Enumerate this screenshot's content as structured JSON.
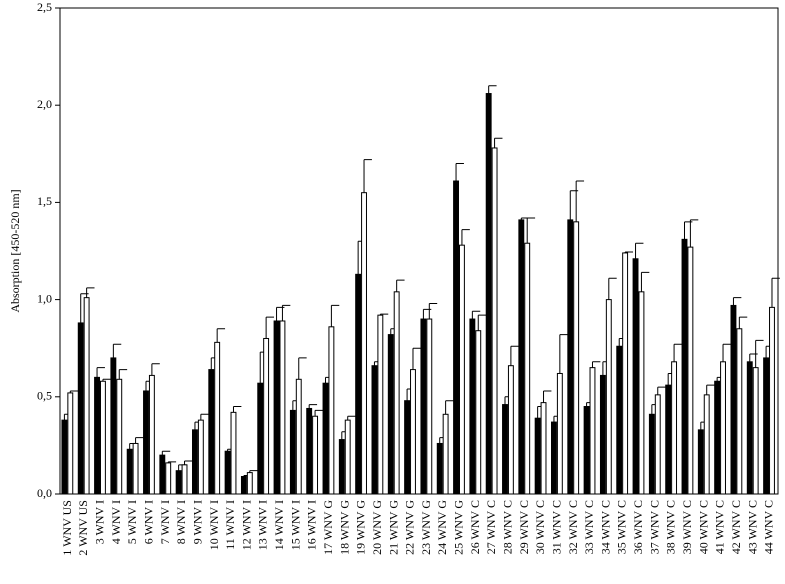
{
  "chart_data": {
    "type": "bar",
    "ylabel": "Absorption [450-520 nm]",
    "categories": [
      "1 WNV US",
      "2 WNV US",
      "3 WNV I",
      "4 WNV I",
      "5 WNV I",
      "6 WNV I",
      "7 WNV I",
      "8 WNV I",
      "9 WNV I",
      "10 WNV I",
      "11 WNV I",
      "12 WNV I",
      "13 WNV I",
      "14 WNV I",
      "15 WNV I",
      "16 WNV I",
      "17 WNV G",
      "18 WNV G",
      "19 WNV G",
      "20 WNV G",
      "21 WNV G",
      "22 WNV G",
      "23 WNV G",
      "24 WNV G",
      "25 WNV G",
      "26 WNV C",
      "27 WNV C",
      "28 WNV C",
      "29 WNV C",
      "30 WNV C",
      "31 WNV C",
      "32 WNV C",
      "33 WNV C",
      "34 WNV C",
      "35 WNV C",
      "36 WNV C",
      "37 WNV C",
      "38 WNV C",
      "39 WNV C",
      "40 WNV C",
      "41 WNV C",
      "42 WNV C",
      "43 WNV C",
      "44 WNV C"
    ],
    "series": [
      {
        "color": "#000000",
        "values": [
          0.38,
          0.88,
          0.6,
          0.7,
          0.23,
          0.53,
          0.2,
          0.12,
          0.33,
          0.64,
          0.22,
          0.09,
          0.57,
          0.89,
          0.43,
          0.44,
          0.57,
          0.28,
          1.13,
          0.66,
          0.82,
          0.48,
          0.9,
          0.26,
          1.61,
          0.9,
          2.06,
          0.46,
          1.41,
          0.39,
          0.37,
          1.41,
          0.45,
          0.61,
          0.76,
          1.21,
          0.41,
          0.56,
          1.31,
          0.33,
          0.58,
          0.97,
          0.68,
          0.7
        ],
        "errors": [
          0.03,
          0.15,
          0.05,
          0.07,
          0.03,
          0.05,
          0.02,
          0.03,
          0.04,
          0.06,
          0.01,
          0.005,
          0.16,
          0.07,
          0.05,
          0.02,
          0.03,
          0.04,
          0.17,
          0.02,
          0.03,
          0.06,
          0.05,
          0.03,
          0.09,
          0.04,
          0.04,
          0.04,
          0.01,
          0.06,
          0.03,
          0.15,
          0.02,
          0.07,
          0.04,
          0.08,
          0.05,
          0.06,
          0.09,
          0.04,
          0.02,
          0.04,
          0.04,
          0.06
        ]
      },
      {
        "color": "#ffffff",
        "values": [
          0.52,
          1.01,
          0.58,
          0.59,
          0.26,
          0.61,
          0.16,
          0.15,
          0.38,
          0.78,
          0.42,
          0.11,
          0.8,
          0.89,
          0.59,
          0.4,
          0.86,
          0.38,
          1.55,
          0.92,
          1.04,
          0.64,
          0.9,
          0.41,
          1.28,
          0.84,
          1.78,
          0.66,
          1.29,
          0.47,
          0.62,
          1.4,
          0.65,
          1.0,
          1.24,
          1.04,
          0.51,
          0.68,
          1.27,
          0.51,
          0.68,
          0.85,
          0.65,
          0.96
        ],
        "errors": [
          0.01,
          0.05,
          0.01,
          0.05,
          0.03,
          0.06,
          0.005,
          0.02,
          0.03,
          0.07,
          0.03,
          0.01,
          0.11,
          0.08,
          0.11,
          0.03,
          0.11,
          0.02,
          0.17,
          0.005,
          0.06,
          0.11,
          0.08,
          0.07,
          0.08,
          0.08,
          0.05,
          0.1,
          0.13,
          0.06,
          0.2,
          0.21,
          0.03,
          0.11,
          0.005,
          0.1,
          0.04,
          0.09,
          0.14,
          0.05,
          0.09,
          0.06,
          0.14,
          0.15
        ]
      }
    ],
    "ylim": [
      0,
      2.5
    ],
    "yticks": [
      {
        "value": 0,
        "label": "0,0"
      },
      {
        "value": 0.5,
        "label": "0,5"
      },
      {
        "value": 1,
        "label": "1,0"
      },
      {
        "value": 1.5,
        "label": "1,5"
      },
      {
        "value": 2,
        "label": "2,0"
      },
      {
        "value": 2.5,
        "label": "2,5"
      }
    ]
  }
}
